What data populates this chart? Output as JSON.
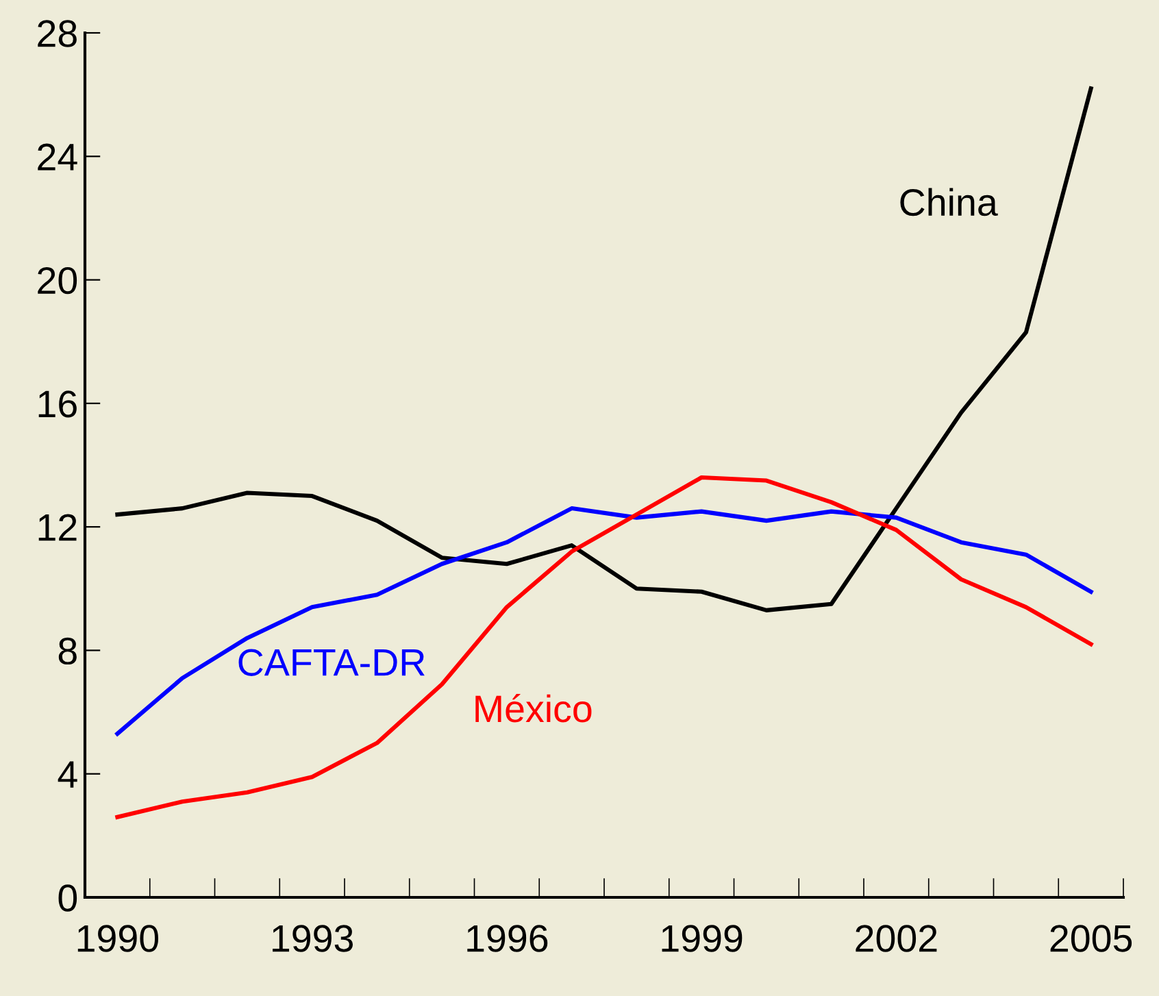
{
  "chart_data": {
    "type": "line",
    "categories": [
      "1990",
      null,
      null,
      "1993",
      null,
      null,
      "1996",
      null,
      null,
      "1999",
      null,
      null,
      "2002",
      null,
      null,
      "2005"
    ],
    "series": [
      {
        "name": "China",
        "color": "#000000",
        "values": [
          12.4,
          12.6,
          13.1,
          13.0,
          12.2,
          11.0,
          10.8,
          11.4,
          10.0,
          9.9,
          9.3,
          9.5,
          12.6,
          15.7,
          18.3,
          26.2
        ]
      },
      {
        "name": "CAFTA-DR",
        "color": "#0000ff",
        "values": [
          5.3,
          7.1,
          8.4,
          9.4,
          9.8,
          10.8,
          11.5,
          12.6,
          12.3,
          12.5,
          12.2,
          12.5,
          12.3,
          11.5,
          11.1,
          9.9
        ]
      },
      {
        "name": "México",
        "color": "#ff0000",
        "values": [
          2.6,
          3.1,
          3.4,
          3.9,
          5.0,
          6.9,
          9.4,
          11.2,
          12.4,
          13.6,
          13.5,
          12.8,
          11.9,
          10.3,
          9.4,
          8.2
        ]
      }
    ],
    "ylim": [
      0,
      28
    ],
    "yticks": [
      0,
      4,
      8,
      12,
      16,
      20,
      24,
      28
    ],
    "grid": false,
    "legend": false,
    "marker": "none",
    "line_style": "solid"
  }
}
